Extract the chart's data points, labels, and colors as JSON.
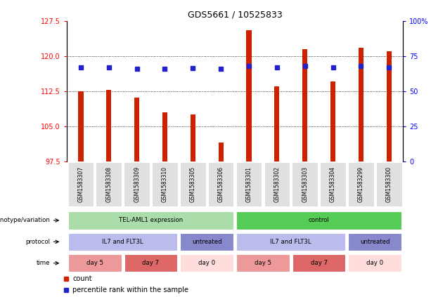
{
  "title": "GDS5661 / 10525833",
  "samples": [
    "GSM1583307",
    "GSM1583308",
    "GSM1583309",
    "GSM1583310",
    "GSM1583305",
    "GSM1583306",
    "GSM1583301",
    "GSM1583302",
    "GSM1583303",
    "GSM1583304",
    "GSM1583299",
    "GSM1583300"
  ],
  "bar_values": [
    112.5,
    112.8,
    111.2,
    108.0,
    107.5,
    101.5,
    125.5,
    113.5,
    121.5,
    114.5,
    121.8,
    121.0
  ],
  "bar_base": 97.5,
  "blue_values": [
    117.5,
    117.5,
    117.2,
    117.3,
    117.4,
    117.2,
    117.8,
    117.5,
    117.8,
    117.5,
    117.9,
    117.6
  ],
  "left_ylim": [
    97.5,
    127.5
  ],
  "right_ylim": [
    0,
    100
  ],
  "left_yticks": [
    97.5,
    105.0,
    112.5,
    120.0,
    127.5
  ],
  "right_yticks": [
    0,
    25,
    50,
    75,
    100
  ],
  "gridlines": [
    105.0,
    112.5,
    120.0
  ],
  "bar_color": "#cc2200",
  "blue_color": "#2222cc",
  "row_genotype": {
    "label": "genotype/variation",
    "groups": [
      {
        "text": "TEL-AML1 expression",
        "start": 0,
        "end": 6,
        "color": "#aaddaa"
      },
      {
        "text": "control",
        "start": 6,
        "end": 12,
        "color": "#55cc55"
      }
    ]
  },
  "row_protocol": {
    "label": "protocol",
    "groups": [
      {
        "text": "IL7 and FLT3L",
        "start": 0,
        "end": 4,
        "color": "#bbbbee"
      },
      {
        "text": "untreated",
        "start": 4,
        "end": 6,
        "color": "#8888cc"
      },
      {
        "text": "IL7 and FLT3L",
        "start": 6,
        "end": 10,
        "color": "#bbbbee"
      },
      {
        "text": "untreated",
        "start": 10,
        "end": 12,
        "color": "#8888cc"
      }
    ]
  },
  "row_time": {
    "label": "time",
    "groups": [
      {
        "text": "day 5",
        "start": 0,
        "end": 2,
        "color": "#ee9999"
      },
      {
        "text": "day 7",
        "start": 2,
        "end": 4,
        "color": "#dd6666"
      },
      {
        "text": "day 0",
        "start": 4,
        "end": 6,
        "color": "#ffdddd"
      },
      {
        "text": "day 5",
        "start": 6,
        "end": 8,
        "color": "#ee9999"
      },
      {
        "text": "day 7",
        "start": 8,
        "end": 10,
        "color": "#dd6666"
      },
      {
        "text": "day 0",
        "start": 10,
        "end": 12,
        "color": "#ffdddd"
      }
    ]
  }
}
